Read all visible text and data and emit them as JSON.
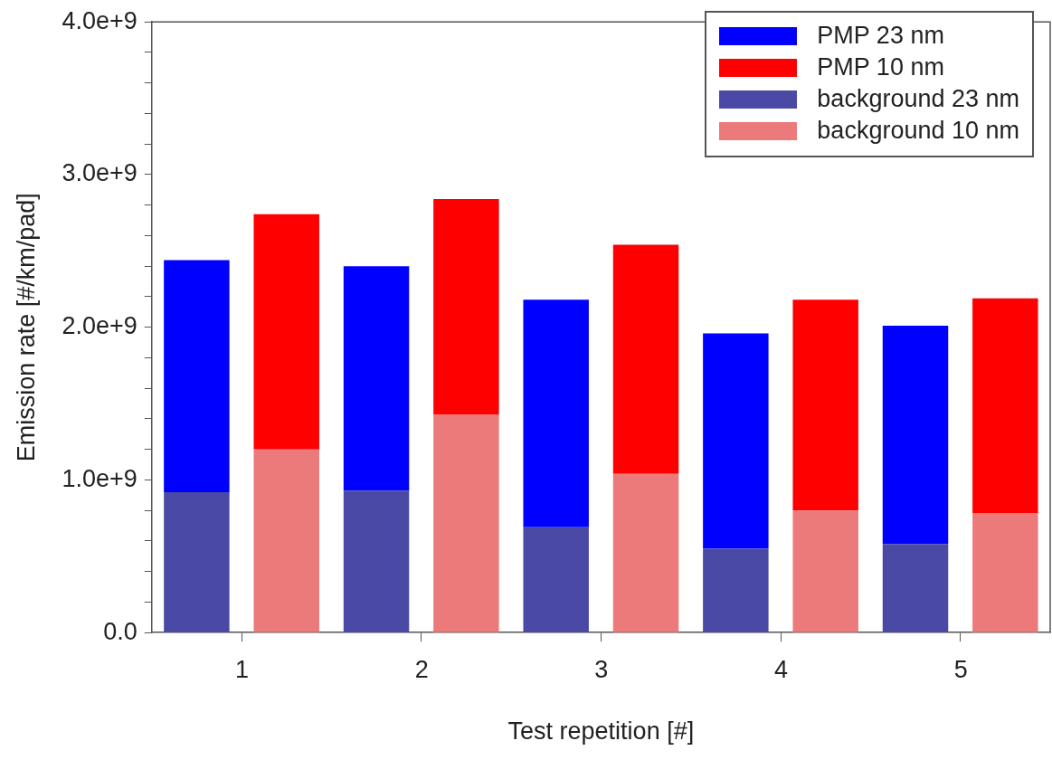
{
  "chart_data": {
    "type": "bar",
    "xlabel": "Test repetition [#]",
    "ylabel": "Emission rate [#/km/pad]",
    "categories": [
      "1",
      null,
      "2",
      null,
      "3",
      null,
      "4",
      null,
      "5",
      null
    ],
    "stacked": true,
    "series": [
      {
        "name": "background 23 nm",
        "color": "#4a4aa6",
        "values": [
          920000000.0,
          null,
          930000000.0,
          null,
          690000000.0,
          null,
          550000000.0,
          null,
          580000000.0,
          null
        ]
      },
      {
        "name": "PMP 23 nm",
        "color": "#0000ff",
        "values": [
          1520000000.0,
          null,
          1470000000.0,
          null,
          1490000000.0,
          null,
          1410000000.0,
          null,
          1430000000.0,
          null
        ]
      },
      {
        "name": "background 10 nm",
        "color": "#ec7a7a",
        "values": [
          null,
          1200000000.0,
          null,
          1430000000.0,
          null,
          1040000000.0,
          null,
          800000000.0,
          null,
          780000000.0
        ]
      },
      {
        "name": "PMP 10 nm",
        "color": "#ff0000",
        "values": [
          null,
          1540000000.0,
          null,
          1410000000.0,
          null,
          1500000000.0,
          null,
          1380000000.0,
          null,
          1410000000.0
        ]
      }
    ],
    "ylim": [
      0,
      4000000000.0
    ],
    "yticks": [
      {
        "value": 0,
        "label": "0.0"
      },
      {
        "value": 200000000.0,
        "label": null
      },
      {
        "value": 400000000.0,
        "label": null
      },
      {
        "value": 600000000.0,
        "label": null
      },
      {
        "value": 800000000.0,
        "label": null
      },
      {
        "value": 1000000000.0,
        "label": "1.0e+9"
      },
      {
        "value": 1200000000.0,
        "label": null
      },
      {
        "value": 1400000000.0,
        "label": null
      },
      {
        "value": 1600000000.0,
        "label": null
      },
      {
        "value": 1800000000.0,
        "label": null
      },
      {
        "value": 2000000000.0,
        "label": "2.0e+9"
      },
      {
        "value": 2200000000.0,
        "label": null
      },
      {
        "value": 2400000000.0,
        "label": null
      },
      {
        "value": 2600000000.0,
        "label": null
      },
      {
        "value": 2800000000.0,
        "label": null
      },
      {
        "value": 3000000000.0,
        "label": "3.0e+9"
      },
      {
        "value": 3200000000.0,
        "label": null
      },
      {
        "value": 3400000000.0,
        "label": null
      },
      {
        "value": 3600000000.0,
        "label": null
      },
      {
        "value": 3800000000.0,
        "label": null
      },
      {
        "value": 4000000000.0,
        "label": "4.0e+9"
      }
    ],
    "grid": false,
    "legend": "top right"
  }
}
